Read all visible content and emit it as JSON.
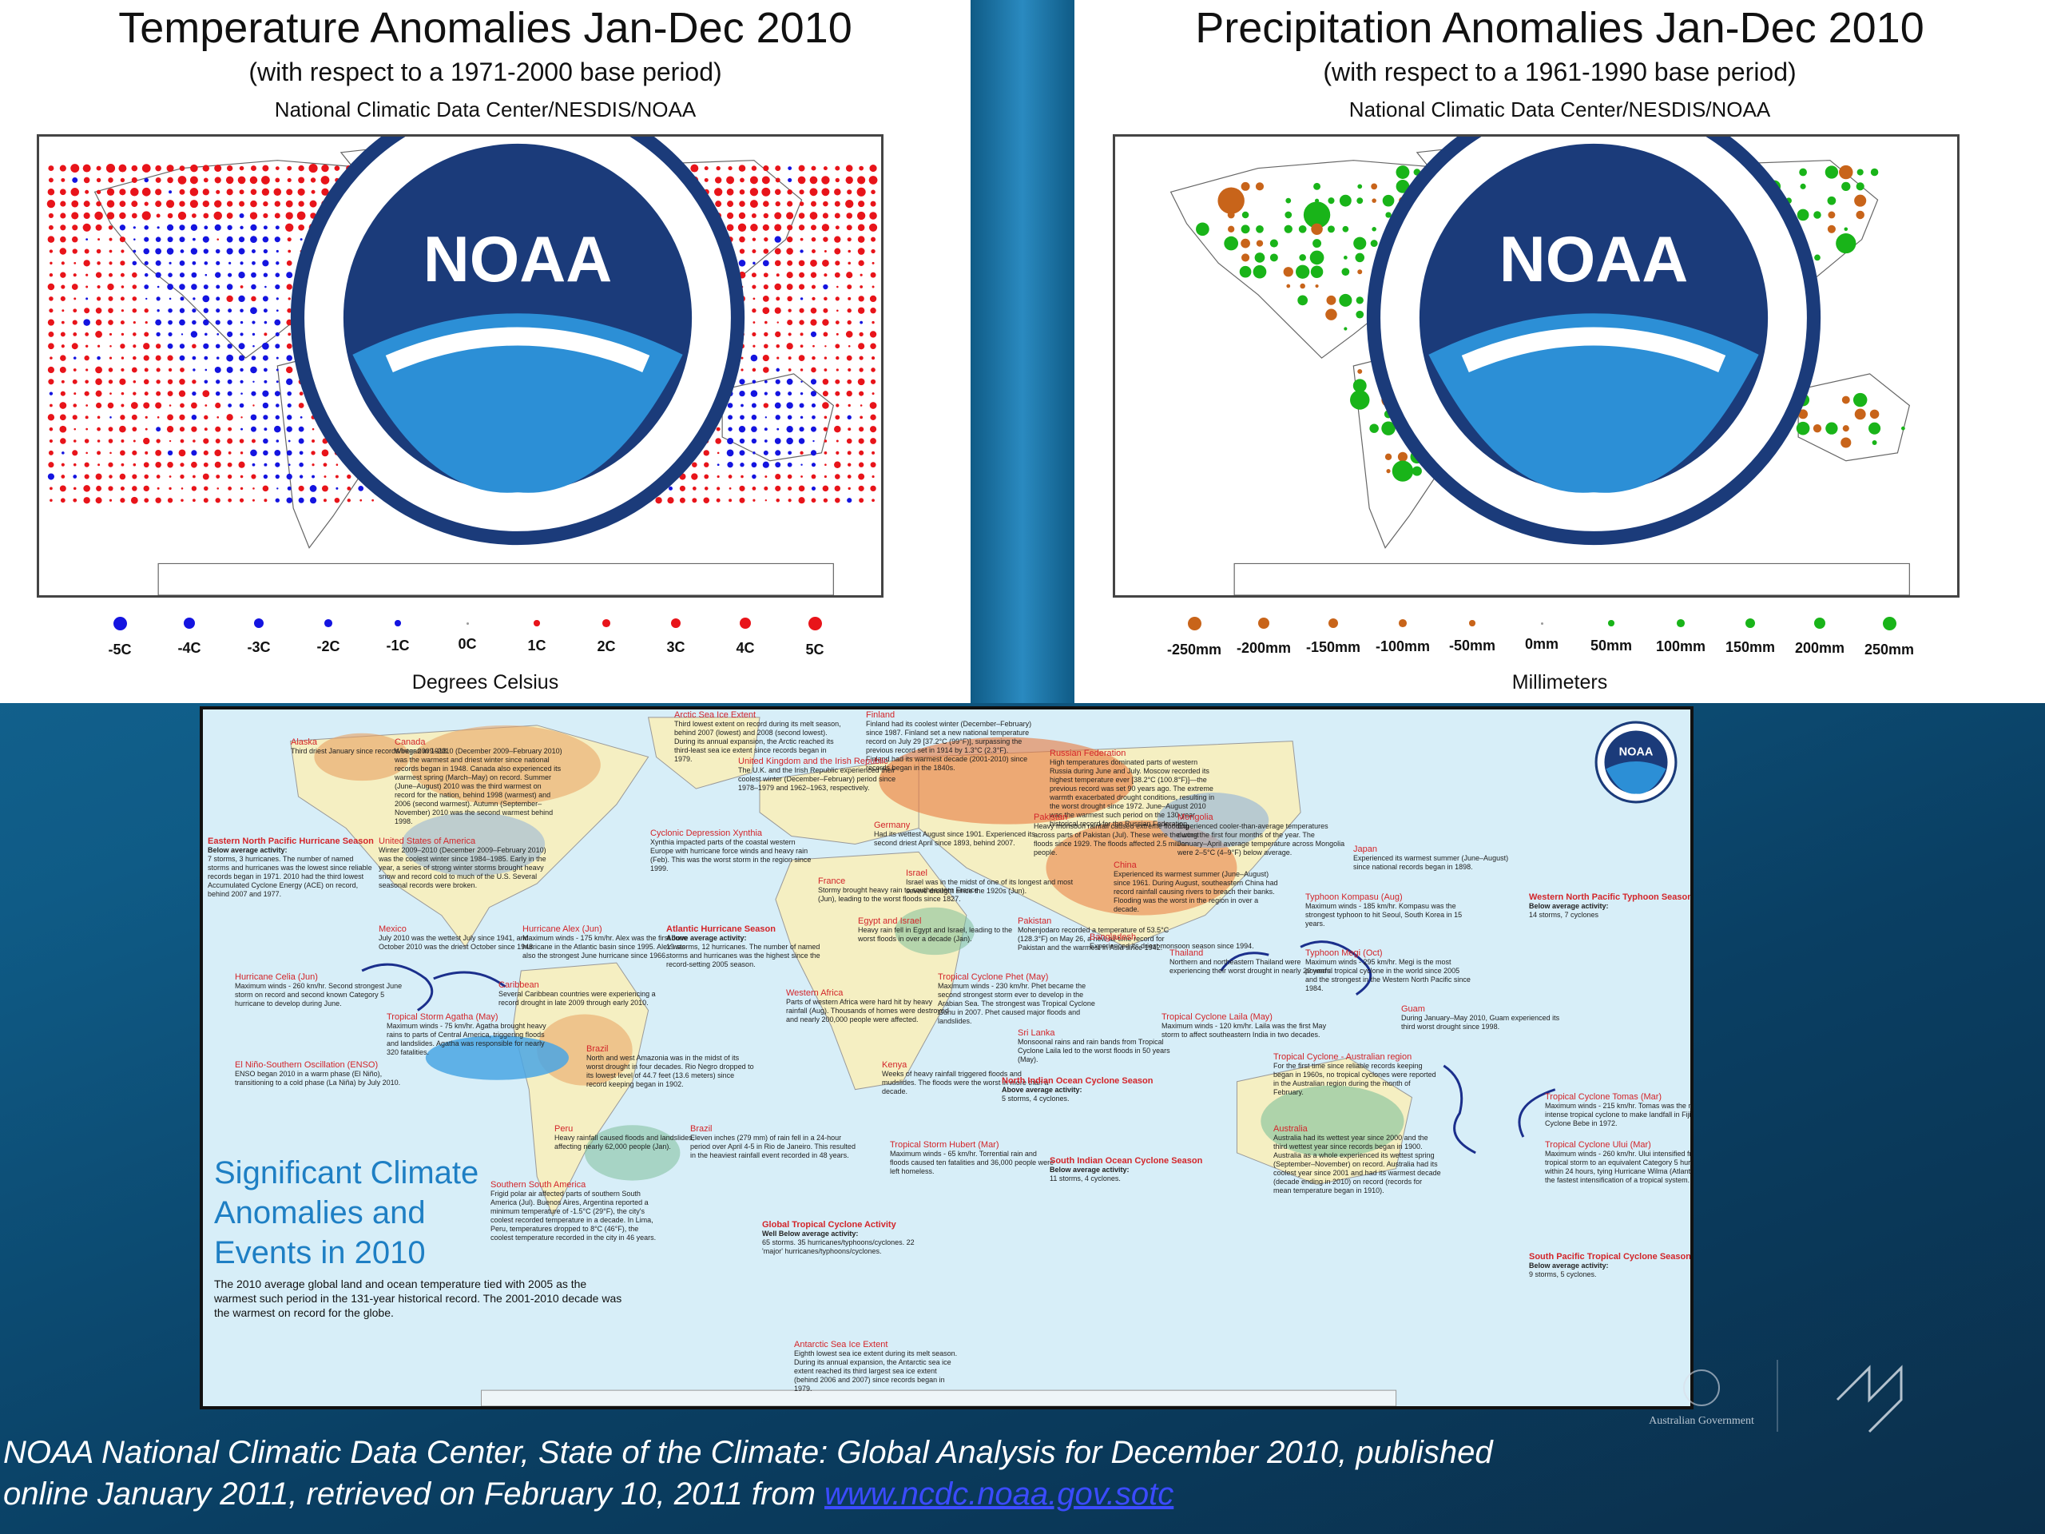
{
  "temperature_map": {
    "title": "Temperature Anomalies Jan-Dec 2010",
    "subtitle": "(with respect to a 1971-2000 base period)",
    "source": "National Climatic Data Center/NESDIS/NOAA",
    "logo_text": "NOAA",
    "legend_labels": [
      "-5C",
      "-4C",
      "-3C",
      "-2C",
      "-1C",
      "0C",
      "1C",
      "2C",
      "3C",
      "4C",
      "5C"
    ],
    "units_label": "Degrees Celsius",
    "colors": {
      "warm": "#e8141a",
      "cool": "#1414e0"
    }
  },
  "precipitation_map": {
    "title": "Precipitation Anomalies Jan-Dec 2010",
    "subtitle": "(with respect to a 1961-1990 base period)",
    "source": "National Climatic Data Center/NESDIS/NOAA",
    "logo_text": "NOAA",
    "legend_labels": [
      "-250mm",
      "-200mm",
      "-150mm",
      "-100mm",
      "-50mm",
      "0mm",
      "50mm",
      "100mm",
      "150mm",
      "200mm",
      "250mm"
    ],
    "units_label": "Millimeters",
    "colors": {
      "dry": "#c8641a",
      "wet": "#19b419"
    }
  },
  "events_map": {
    "heading_lines": [
      "Significant Climate",
      "Anomalies and",
      "Events in 2010"
    ],
    "summary": "The 2010 average global land and ocean temperature tied with 2005 as the warmest such period in the 131-year historical record. The 2001-2010 decade was the warmest on record for the globe.",
    "logo_text": "NOAA",
    "events": [
      {
        "id": "arctic",
        "title": "Arctic Sea Ice Extent",
        "text": "Third lowest extent on record during its melt season, behind 2007 (lowest) and 2008 (second lowest). During its annual expansion, the Arctic reached its third-least sea ice extent since records began in 1979."
      },
      {
        "id": "finland",
        "title": "Finland",
        "text": "Finland had its coolest winter (December–February) since 1987. Finland set a new national temperature record on July 29 [37.2°C (99°F)], surpassing the previous record set in 1914 by 1.3°C (2.3°F). Finland had its warmest decade (2001-2010) since records began in the 1840s."
      },
      {
        "id": "alaska",
        "title": "Alaska",
        "text": "Third driest January since records began in 1918."
      },
      {
        "id": "canada",
        "title": "Canada",
        "text": "Winter 2009–2010 (December 2009–February 2010) was the warmest and driest winter since national records began in 1948. Canada also experienced its warmest spring (March–May) on record. Summer (June–August) 2010 was the third warmest on record for the nation, behind 1998 (warmest) and 2006 (second warmest). Autumn (September–November) 2010 was the second warmest behind 1998."
      },
      {
        "id": "uk",
        "title": "United Kingdom and the Irish Republic",
        "text": "The U.K. and the Irish Republic experienced their coolest winter (December–February) period since 1978–1979 and 1962–1963, respectively."
      },
      {
        "id": "russia",
        "title": "Russian Federation",
        "text": "High temperatures dominated parts of western Russia during June and July. Moscow recorded its highest temperature ever [38.2°C (100.8°F)]—the previous record was set 90 years ago. The extreme warmth exacerbated drought conditions, resulting in the worst drought since 1972. June–August 2010 was the warmest such period on the 130-year historical record for the Russian Federation."
      },
      {
        "id": "enp",
        "title": "Eastern North Pacific Hurricane Season",
        "subtitle": "Below average activity:",
        "text": "7 storms, 3 hurricanes. The number of named storms and hurricanes was the lowest since reliable records began in 1971. 2010 had the third lowest Accumulated Cyclone Energy (ACE) on record, behind 2007 and 1977."
      },
      {
        "id": "usa",
        "title": "United States of America",
        "text": "Winter 2009–2010 (December 2009–February 2010) was the coolest winter since 1984–1985. Early in the year, a series of strong winter storms brought heavy snow and record cold to much of the U.S. Several seasonal records were broken."
      },
      {
        "id": "xynthia",
        "title": "Cyclonic Depression Xynthia",
        "text": "Xynthia impacted parts of the coastal western Europe with hurricane force winds and heavy rain (Feb). This was the worst storm in the region since 1999."
      },
      {
        "id": "germany",
        "title": "Germany",
        "text": "Had its wettest August since 1901. Experienced its second driest April since 1893, behind 2007."
      },
      {
        "id": "pakistan",
        "title": "Pakistan",
        "text": "Heavy monsoon rainfall caused extreme flooding across parts of Pakistan (Jul). These were the worst floods since 1929. The floods affected 2.5 million people."
      },
      {
        "id": "mongolia",
        "title": "Mongolia",
        "text": "Experienced cooler-than-average temperatures during the first four months of the year. The January–April average temperature across Mongolia were 2–5°C (4–9°F) below average."
      },
      {
        "id": "japan",
        "title": "Japan",
        "text": "Experienced its warmest summer (June–August) since national records began in 1898."
      },
      {
        "id": "france",
        "title": "France",
        "text": "Stormy brought heavy rain to southeastern France (Jun), leading to the worst floods since 1827."
      },
      {
        "id": "israel",
        "title": "Israel",
        "text": "Israel was in the midst of one of its longest and most severe drought since the 1920s (Jun)."
      },
      {
        "id": "china",
        "title": "China",
        "text": "Experienced its warmest summer (June–August) since 1961. During August, southeastern China had record rainfall causing rivers to breach their banks. Flooding was the worst in the region in over a decade."
      },
      {
        "id": "kompasu",
        "title": "Typhoon Kompasu (Aug)",
        "text": "Maximum winds - 185 km/hr. Kompasu was the strongest typhoon to hit Seoul, South Korea in 15 years."
      },
      {
        "id": "wnp",
        "title": "Western North Pacific Typhoon Season",
        "subtitle": "Below average activity:",
        "text": "14 storms, 7 cyclones"
      },
      {
        "id": "alex",
        "title": "Hurricane Alex (Jun)",
        "text": "Maximum winds - 175 km/hr. Alex was the first June hurricane in the Atlantic basin since 1995. Alex was also the strongest June hurricane since 1966."
      },
      {
        "id": "mexico",
        "title": "Mexico",
        "text": "July 2010 was the wettest July since 1941, and October 2010 was the driest October since 1948."
      },
      {
        "id": "atlantic",
        "title": "Atlantic Hurricane Season",
        "subtitle": "Above average activity:",
        "text": "19 storms, 12 hurricanes. The number of named storms and hurricanes was the highest since the record-setting 2005 season."
      },
      {
        "id": "egypt",
        "title": "Egypt and Israel",
        "text": "Heavy rain fell in Egypt and Israel, leading to the worst floods in over a decade (Jan)."
      },
      {
        "id": "pakistan2",
        "title": "Pakistan",
        "text": "Mohenjodaro recorded a temperature of 53.5°C (128.3°F) on May 26, a new all-time record for Pakistan and the warmest in Asia since 1942."
      },
      {
        "id": "bangladesh",
        "title": "Bangladesh",
        "text": "Experienced its driest monsoon season since 1994."
      },
      {
        "id": "thailand",
        "title": "Thailand",
        "text": "Northern and northeastern Thailand were experiencing their worst drought in nearly 20 years."
      },
      {
        "id": "megi",
        "title": "Typhoon Megi (Oct)",
        "text": "Maximum winds - 295 km/hr. Megi is the most powerful tropical cyclone in the world since 2005 and the strongest in the Western North Pacific since 1984."
      },
      {
        "id": "celia",
        "title": "Hurricane Celia (Jun)",
        "text": "Maximum winds - 260 km/hr. Second strongest June storm on record and second known Category 5 hurricane to develop during June."
      },
      {
        "id": "caribbean",
        "title": "Caribbean",
        "text": "Several Caribbean countries were experiencing a record drought in late 2009 through early 2010."
      },
      {
        "id": "agatha",
        "title": "Tropical Storm Agatha (May)",
        "text": "Maximum winds - 75 km/hr. Agatha brought heavy rains to parts of Central America, triggering floods and landslides. Agatha was responsible for nearly 320 fatalities."
      },
      {
        "id": "phet",
        "title": "Tropical Cyclone Phet (May)",
        "text": "Maximum winds - 230 km/hr. Phet became the second strongest storm ever to develop in the Arabian Sea. The strongest was Tropical Cyclone Gunu in 2007. Phet caused major floods and landslides."
      },
      {
        "id": "wafrica",
        "title": "Western Africa",
        "text": "Parts of western Africa were hard hit by heavy rainfall (Aug). Thousands of homes were destroyed and nearly 200,000 people were affected."
      },
      {
        "id": "laila",
        "title": "Tropical Cyclone Laila (May)",
        "text": "Maximum winds - 120 km/hr. Laila was the first May storm to affect southeastern India in two decades."
      },
      {
        "id": "guam",
        "title": "Guam",
        "text": "During January–May 2010, Guam experienced its third worst drought since 1998."
      },
      {
        "id": "enso",
        "title": "El Niño-Southern Oscillation (ENSO)",
        "text": "ENSO began 2010 in a warm phase (El Niño), transitioning to a cold phase (La Niña) by July 2010."
      },
      {
        "id": "brazil1",
        "title": "Brazil",
        "text": "North and west Amazonia was in the midst of its worst drought in four decades. Rio Negro dropped to its lowest level of 44.7 feet (13.6 meters) since record keeping began in 1902."
      },
      {
        "id": "srilanka",
        "title": "Sri Lanka",
        "text": "Monsoonal rains and rain bands from Tropical Cyclone Laila led to the worst floods in 50 years (May)."
      },
      {
        "id": "australiancyc",
        "title": "Tropical Cyclone - Australian region",
        "text": "For the first time since reliable records keeping began in 1960s, no tropical cyclones were reported in the Australian region during the month of February."
      },
      {
        "id": "kenya",
        "title": "Kenya",
        "text": "Weeks of heavy rainfall triggered floods and mudslides. The floods were the worst in more than a decade."
      },
      {
        "id": "peru",
        "title": "Peru",
        "text": "Heavy rainfall caused floods and landslides, affecting nearly 62,000 people (Jan)."
      },
      {
        "id": "nio",
        "title": "North Indian Ocean Cyclone Season",
        "subtitle": "Above average activity:",
        "text": "5 storms, 4 cyclones."
      },
      {
        "id": "brazil2",
        "title": "Brazil",
        "text": "Eleven inches (279 mm) of rain fell in a 24-hour period over April 4-5 in Rio de Janeiro. This resulted in the heaviest rainfall event recorded in 48 years."
      },
      {
        "id": "hubert",
        "title": "Tropical Storm Hubert (Mar)",
        "text": "Maximum winds - 65 km/hr. Torrential rain and floods caused ten fatalities and 36,000 people were left homeless."
      },
      {
        "id": "tomas",
        "title": "Tropical Cyclone Tomas (Mar)",
        "text": "Maximum winds - 215 km/hr. Tomas was the most intense tropical cyclone to make landfall in Fiji since Cyclone Bebe in 1972."
      },
      {
        "id": "australia",
        "title": "Australia",
        "text": "Australia had its wettest year since 2000 and the third wettest year since records began in 1900. Australia as a whole experienced its wettest spring (September–November) on record. Australia had its coolest year since 2001 and had its warmest decade (decade ending in 2010) on record (records for mean temperature began in 1910)."
      },
      {
        "id": "ului",
        "title": "Tropical Cyclone Ului (Mar)",
        "text": "Maximum winds - 260 km/hr. Ului intensified from a tropical storm to an equivalent Category 5 hurricane within 24 hours, tying Hurricane Wilma (Atlantic) for the fastest intensification of a tropical system."
      },
      {
        "id": "southam",
        "title": "Southern South America",
        "text": "Frigid polar air affected parts of southern South America (Jul). Buenos Aires, Argentina reported a minimum temperature of -1.5°C (29°F), the city's coolest recorded temperature in a decade. In Lima, Peru, temperatures dropped to 8°C (46°F), the coolest temperature recorded in the city in 46 years."
      },
      {
        "id": "sio",
        "title": "South Indian Ocean Cyclone Season",
        "subtitle": "Below average activity:",
        "text": "11 storms, 4 cyclones."
      },
      {
        "id": "gtc",
        "title": "Global Tropical Cyclone Activity",
        "subtitle": "Well Below average activity:",
        "text": "65 storms. 35 hurricanes/typhoons/cyclones. 22 'major' hurricanes/typhoons/cyclones."
      },
      {
        "id": "spc",
        "title": "South Pacific Tropical Cyclone Season",
        "subtitle": "Below average activity:",
        "text": "9 storms, 5 cyclones."
      },
      {
        "id": "antarctic",
        "title": "Antarctic Sea Ice Extent",
        "text": "Eighth lowest sea ice extent during its melt season. During its annual expansion, the Antarctic sea ice extent reached its third largest sea ice extent (behind 2006 and 2007) since records began in 1979."
      }
    ]
  },
  "footer": {
    "citation_line1": "NOAA National Climatic Data Center, State of the Climate: Global Analysis for December 2010, published",
    "citation_line2_prefix": "online January 2011, retrieved on February 10, 2011 from ",
    "citation_link": "www.ncdc.noaa.gov.sotc",
    "gov_logo_text": "Australian Government"
  }
}
